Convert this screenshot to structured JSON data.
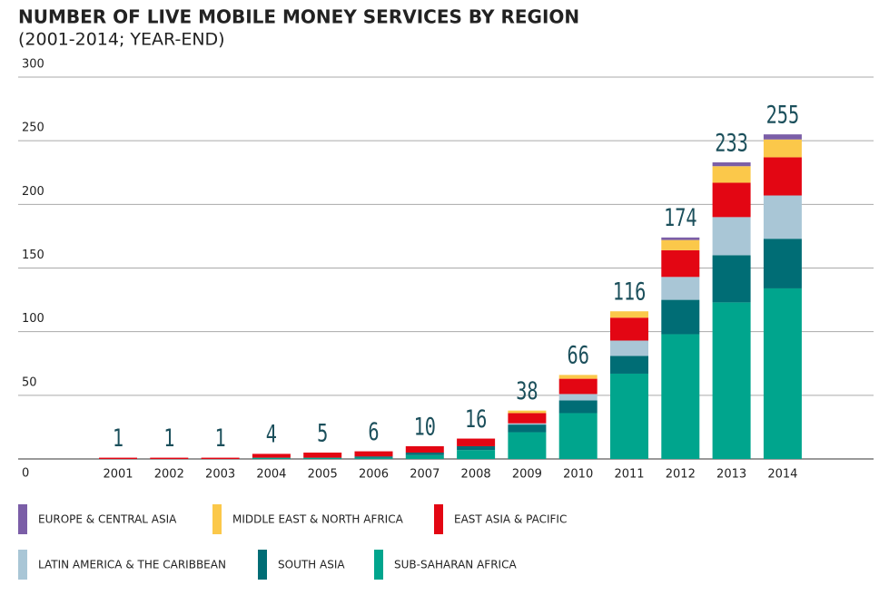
{
  "chart_data": {
    "type": "stacked-bar",
    "title": "NUMBER OF LIVE MOBILE MONEY SERVICES BY REGION",
    "subtitle": "(2001-2014; YEAR-END)",
    "categories": [
      "2001",
      "2002",
      "2003",
      "2004",
      "2005",
      "2006",
      "2007",
      "2008",
      "2009",
      "2010",
      "2011",
      "2012",
      "2013",
      "2014"
    ],
    "series": [
      {
        "name": "EUROPE & CENTRAL ASIA",
        "color": "#7b5ea7",
        "values": [
          0,
          0,
          0,
          0,
          0,
          0,
          0,
          0,
          0,
          0,
          0,
          2,
          3,
          4
        ]
      },
      {
        "name": "MIDDLE EAST & NORTH AFRICA",
        "color": "#fbc84a",
        "values": [
          0,
          0,
          0,
          0,
          0,
          0,
          0,
          0,
          2,
          3,
          5,
          8,
          13,
          14
        ]
      },
      {
        "name": "EAST ASIA & PACIFIC",
        "color": "#e30613",
        "values": [
          1,
          1,
          1,
          3,
          4,
          4,
          5,
          6,
          8,
          12,
          18,
          21,
          27,
          30
        ]
      },
      {
        "name": "LATIN AMERICA & THE CARIBBEAN",
        "color": "#a9c6d6",
        "values": [
          0,
          0,
          0,
          0,
          0,
          0,
          0,
          0,
          1,
          5,
          12,
          18,
          30,
          34
        ]
      },
      {
        "name": "SOUTH ASIA",
        "color": "#006d75",
        "values": [
          0,
          0,
          0,
          0,
          0,
          1,
          2,
          3,
          6,
          10,
          14,
          27,
          37,
          39
        ]
      },
      {
        "name": "SUB-SAHARAN AFRICA",
        "color": "#00a58d",
        "values": [
          0,
          0,
          0,
          1,
          1,
          1,
          3,
          7,
          21,
          36,
          67,
          98,
          123,
          134
        ]
      }
    ],
    "totals": [
      1,
      1,
      1,
      4,
      5,
      6,
      10,
      16,
      38,
      66,
      116,
      174,
      233,
      255
    ],
    "ylim": [
      0,
      300
    ],
    "yticks": [
      0,
      50,
      100,
      150,
      200,
      250,
      300
    ],
    "grid": true
  }
}
